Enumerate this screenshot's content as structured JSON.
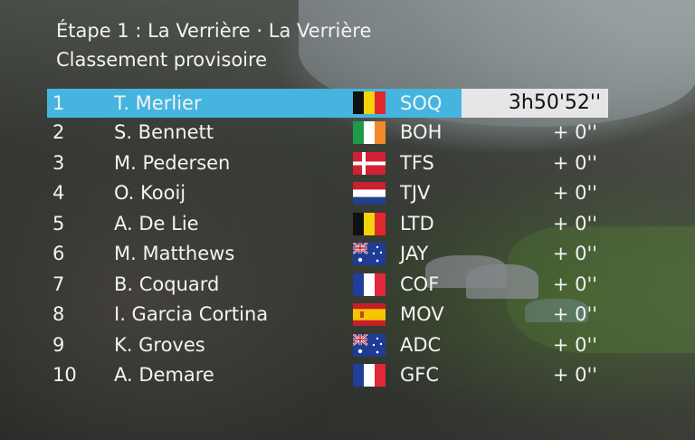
{
  "header": {
    "title": "Étape 1 : La Verrière · La Verrière",
    "subtitle": "Classement provisoire"
  },
  "standings": [
    {
      "pos": "1",
      "name": "T. Merlier",
      "flag": "belgium-flag-icon",
      "team": "SOQ",
      "time": "3h50'52''"
    },
    {
      "pos": "2",
      "name": "S. Bennett",
      "flag": "ireland-flag-icon",
      "team": "BOH",
      "time": "+ 0''"
    },
    {
      "pos": "3",
      "name": "M. Pedersen",
      "flag": "denmark-flag-icon",
      "team": "TFS",
      "time": "+ 0''"
    },
    {
      "pos": "4",
      "name": "O. Kooij",
      "flag": "netherlands-flag-icon",
      "team": "TJV",
      "time": "+ 0''"
    },
    {
      "pos": "5",
      "name": "A. De Lie",
      "flag": "belgium-flag-icon",
      "team": "LTD",
      "time": "+ 0''"
    },
    {
      "pos": "6",
      "name": "M. Matthews",
      "flag": "australia-flag-icon",
      "team": "JAY",
      "time": "+ 0''"
    },
    {
      "pos": "7",
      "name": "B. Coquard",
      "flag": "france-flag-icon",
      "team": "COF",
      "time": "+ 0''"
    },
    {
      "pos": "8",
      "name": "I. Garcia Cortina",
      "flag": "spain-flag-icon",
      "team": "MOV",
      "time": "+ 0''"
    },
    {
      "pos": "9",
      "name": "K. Groves",
      "flag": "australia-flag-icon",
      "team": "ADC",
      "time": "+ 0''"
    },
    {
      "pos": "10",
      "name": "A. Demare",
      "flag": "france-flag-icon",
      "team": "GFC",
      "time": "+ 0''"
    }
  ],
  "colors": {
    "leader_bar": "#45b5e0",
    "leader_time_box": "#e6e6e6",
    "text": "#f3f3f3"
  }
}
